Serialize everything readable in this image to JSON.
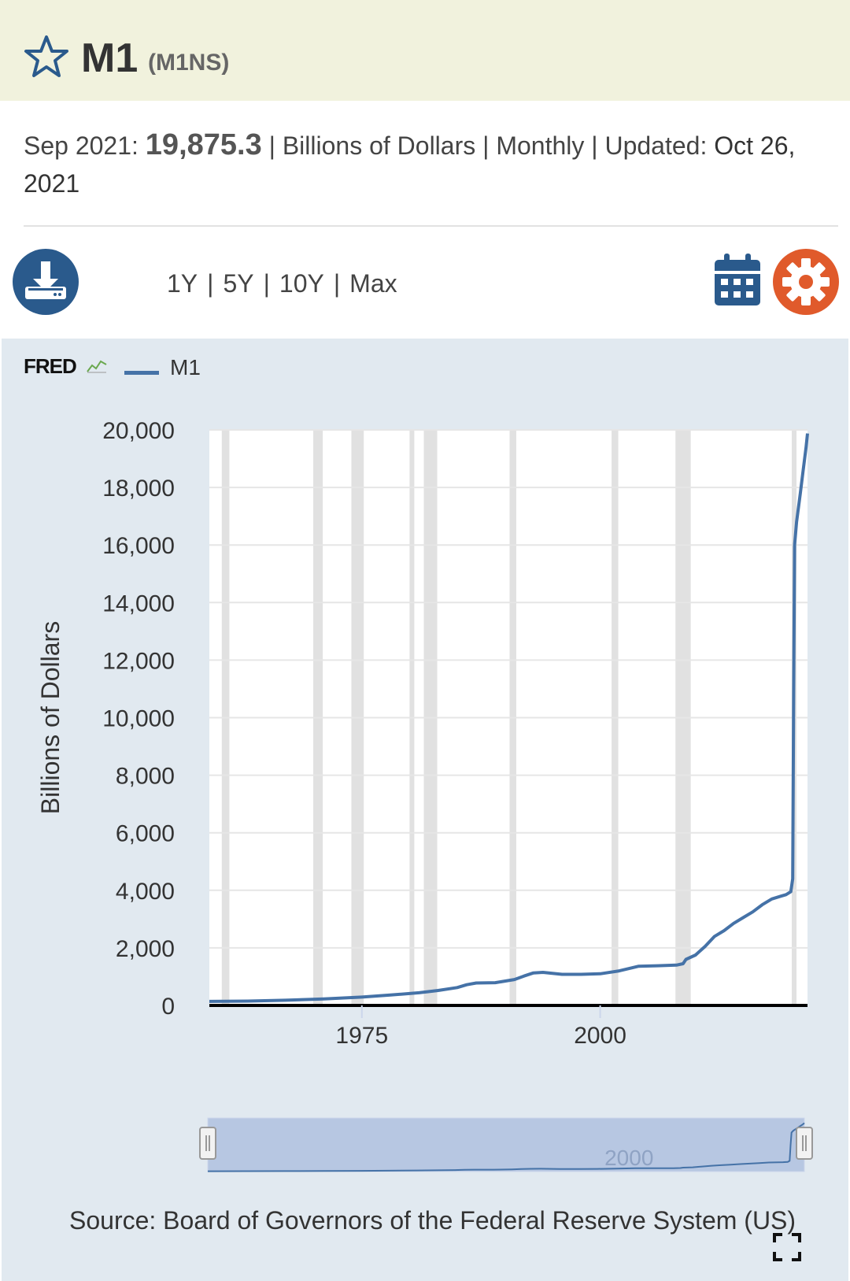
{
  "header": {
    "title": "M1",
    "series_code": "(M1NS)"
  },
  "meta": {
    "date": "Sep 2021:",
    "value": "19,875.3",
    "units": "| Billions of Dollars | Monthly | Updated:",
    "updated": "Oct 26, 2021"
  },
  "toolbar": {
    "ranges": [
      "1Y",
      "5Y",
      "10Y",
      "Max"
    ],
    "separator": "|"
  },
  "chart": {
    "logo_text": "FRED",
    "legend": "M1",
    "source": "Source: Board of Governors of the Federal Reserve System (US)",
    "navigator_label": "2000"
  },
  "colors": {
    "series": "#4572a7",
    "recession": "#e1e1e1",
    "title_bg": "#f1f2dd",
    "panel_bg": "#e1e9f0",
    "download": "#2a5a8c",
    "calendar": "#2a5a8c",
    "gear": "#e05a2b",
    "star": "#2a5a8c"
  },
  "icons": [
    "star-icon",
    "download-icon",
    "calendar-icon",
    "gear-icon",
    "fred-spark-icon",
    "fullscreen-icon"
  ],
  "chart_data": {
    "type": "line",
    "ylabel": "Billions of Dollars",
    "xlim": [
      1959,
      2021.75
    ],
    "ylim": [
      0,
      20000
    ],
    "ytick_labels": [
      "0",
      "2,000",
      "4,000",
      "6,000",
      "8,000",
      "10,000",
      "12,000",
      "14,000",
      "16,000",
      "18,000",
      "20,000"
    ],
    "ytick_values": [
      0,
      2000,
      4000,
      6000,
      8000,
      10000,
      12000,
      14000,
      16000,
      18000,
      20000
    ],
    "xtick_labels": [
      "1975",
      "2000"
    ],
    "xtick_values": [
      1975,
      2000
    ],
    "grid": true,
    "recessions": [
      [
        1960.3,
        1961.1
      ],
      [
        1969.9,
        1970.9
      ],
      [
        1973.9,
        1975.2
      ],
      [
        1980.0,
        1980.5
      ],
      [
        1981.5,
        1982.9
      ],
      [
        1990.5,
        1991.2
      ],
      [
        2001.2,
        2001.9
      ],
      [
        2007.9,
        2009.5
      ],
      [
        2020.1,
        2020.4
      ]
    ],
    "series": [
      {
        "name": "M1",
        "x": [
          1959,
          1963,
          1967,
          1971,
          1975,
          1978,
          1981,
          1983,
          1985,
          1986,
          1987,
          1989,
          1991,
          1992,
          1993,
          1994,
          1996,
          1998,
          2000,
          2002,
          2004,
          2006,
          2008,
          2008.7,
          2009,
          2010,
          2011,
          2012,
          2013,
          2014,
          2015,
          2016,
          2017,
          2018,
          2019,
          2019.5,
          2020.0,
          2020.2,
          2020.3,
          2020.4,
          2020.6,
          2021.0,
          2021.3,
          2021.6,
          2021.75
        ],
        "y": [
          140,
          150,
          180,
          225,
          290,
          360,
          440,
          520,
          620,
          720,
          780,
          790,
          900,
          1020,
          1130,
          1150,
          1080,
          1080,
          1100,
          1200,
          1360,
          1380,
          1400,
          1450,
          1600,
          1750,
          2050,
          2400,
          2600,
          2850,
          3050,
          3250,
          3500,
          3700,
          3800,
          3850,
          3950,
          4400,
          10800,
          16000,
          16800,
          17800,
          18600,
          19400,
          19875
        ]
      }
    ]
  }
}
